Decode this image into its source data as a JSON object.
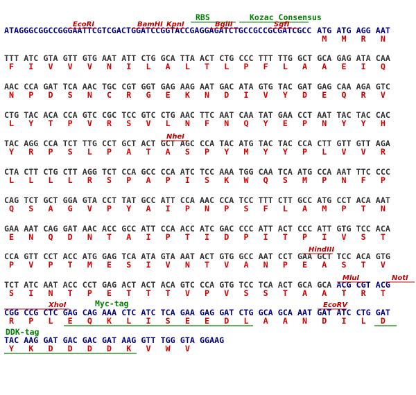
{
  "rows": [
    {
      "annotations": [
        "RBS",
        "Kozac Consensus",
        "EcoRI",
        "BamHI",
        "KpnI",
        "BglII",
        "SgfI"
      ],
      "sequence": [
        "ATAGGGCGGCCGGGAATTCGTCGACTGGATCCGGTACCGAGGAGATCTGCCGCCGCGATCGCC",
        "ATG",
        "ATG",
        "AGG",
        "AAT"
      ],
      "amino_acids": [
        "M",
        "M",
        "R",
        "N"
      ]
    },
    {
      "annotations": [],
      "sequence": [
        "TTT",
        "ATC",
        "GTA",
        "GTT",
        "GTG",
        "AAT",
        "ATT",
        "CTG",
        "GCA",
        "TTA",
        "ACT",
        "CTG",
        "CCC",
        "TTT",
        "TTG",
        "GCT",
        "GCA",
        "GAG",
        "ATA",
        "CAA"
      ],
      "amino_acids": [
        "F",
        "I",
        "V",
        "V",
        "V",
        "N",
        "I",
        "L",
        "A",
        "L",
        "T",
        "L",
        "P",
        "F",
        "L",
        "A",
        "A",
        "E",
        "I",
        "Q"
      ]
    },
    {
      "annotations": [],
      "sequence": [
        "AAC",
        "CCA",
        "GAT",
        "TCA",
        "AAC",
        "TGC",
        "CGT",
        "GGT",
        "GAG",
        "AAG",
        "AAT",
        "GAC",
        "ATA",
        "GTG",
        "TAC",
        "GAT",
        "GAG",
        "CAA",
        "AGA",
        "GTC"
      ],
      "amino_acids": [
        "N",
        "P",
        "D",
        "S",
        "N",
        "C",
        "R",
        "G",
        "E",
        "K",
        "N",
        "D",
        "I",
        "V",
        "Y",
        "D",
        "E",
        "Q",
        "R",
        "V"
      ]
    },
    {
      "annotations": [],
      "sequence": [
        "CTG",
        "TAC",
        "ACA",
        "CCA",
        "GTC",
        "CGC",
        "TCC",
        "GTC",
        "CTG",
        "AAC",
        "TTC",
        "AAT",
        "CAA",
        "TAT",
        "GAA",
        "CCT",
        "AAT",
        "TAC",
        "TAC",
        "CAC"
      ],
      "amino_acids": [
        "L",
        "Y",
        "T",
        "P",
        "V",
        "R",
        "S",
        "V",
        "L",
        "N",
        "F",
        "N",
        "Q",
        "Y",
        "E",
        "P",
        "N",
        "Y",
        "Y",
        "H"
      ]
    },
    {
      "annotations": [
        "NheI"
      ],
      "sequence": [
        "TAC",
        "AGG",
        "CCA",
        "TCT",
        "TTG",
        "CCT",
        "GCT",
        "ACT",
        "GCT",
        "AGC",
        "CCA",
        "TAC",
        "ATG",
        "TAC",
        "TAC",
        "CCA",
        "CTT",
        "GTT",
        "GTT",
        "AGA"
      ],
      "amino_acids": [
        "Y",
        "R",
        "P",
        "S",
        "L",
        "P",
        "A",
        "T",
        "A",
        "S",
        "P",
        "Y",
        "M",
        "Y",
        "Y",
        "P",
        "L",
        "V",
        "V",
        "R"
      ]
    },
    {
      "annotations": [],
      "sequence": [
        "CTA",
        "CTT",
        "CTG",
        "CTT",
        "AGG",
        "TCT",
        "CCA",
        "GCC",
        "CCA",
        "ATC",
        "TCC",
        "AAA",
        "TGG",
        "CAA",
        "TCA",
        "ATG",
        "CCA",
        "AAT",
        "TTC",
        "CCC"
      ],
      "amino_acids": [
        "L",
        "L",
        "L",
        "L",
        "R",
        "S",
        "P",
        "A",
        "P",
        "I",
        "S",
        "K",
        "W",
        "Q",
        "S",
        "M",
        "P",
        "N",
        "F",
        "P"
      ]
    },
    {
      "annotations": [],
      "sequence": [
        "CAG",
        "TCT",
        "GCT",
        "GGA",
        "GTA",
        "CCT",
        "TAT",
        "GCC",
        "ATT",
        "CCA",
        "AAC",
        "CCA",
        "TCC",
        "TTT",
        "CTT",
        "GCC",
        "ATG",
        "CCT",
        "ACA",
        "AAT"
      ],
      "amino_acids": [
        "Q",
        "S",
        "A",
        "G",
        "V",
        "P",
        "Y",
        "A",
        "I",
        "P",
        "N",
        "P",
        "S",
        "F",
        "L",
        "A",
        "M",
        "P",
        "T",
        "N"
      ]
    },
    {
      "annotations": [],
      "sequence": [
        "GAA",
        "AAT",
        "CAG",
        "GAT",
        "AAC",
        "ACC",
        "GCC",
        "ATT",
        "CCA",
        "ACC",
        "ATC",
        "GAC",
        "CCC",
        "ATT",
        "ACT",
        "CCC",
        "ATT",
        "GTG",
        "TCC",
        "ACA"
      ],
      "amino_acids": [
        "E",
        "N",
        "Q",
        "D",
        "N",
        "T",
        "A",
        "I",
        "P",
        "T",
        "I",
        "D",
        "P",
        "I",
        "T",
        "P",
        "I",
        "V",
        "S",
        "T"
      ]
    },
    {
      "annotations": [
        "HindIII"
      ],
      "sequence": [
        "CCA",
        "GTT",
        "CCT",
        "ACC",
        "ATG",
        "GAG",
        "TCA",
        "ATA",
        "GTA",
        "AAT",
        "ACT",
        "GTG",
        "GCC",
        "AAT",
        "CCT",
        "GAA",
        "GCT",
        "TCC",
        "ACA",
        "GTG"
      ],
      "amino_acids": [
        "P",
        "V",
        "P",
        "T",
        "M",
        "E",
        "S",
        "I",
        "V",
        "N",
        "T",
        "V",
        "A",
        "N",
        "P",
        "E",
        "A",
        "S",
        "T",
        "V"
      ]
    },
    {
      "annotations": [
        "MluI",
        "NotI"
      ],
      "sequence": [
        "TCT",
        "ATC",
        "AAT",
        "ACC",
        "CCT",
        "GAG",
        "ACT",
        "ACT",
        "ACA",
        "GTC",
        "CCA",
        "GTG",
        "TCC",
        "TCA",
        "ACT",
        "GCA",
        "GCA",
        "ACG",
        "CGT",
        "ACG"
      ],
      "amino_acids": [
        "S",
        "I",
        "N",
        "T",
        "P",
        "E",
        "T",
        "T",
        "T",
        "V",
        "P",
        "V",
        "S",
        "S",
        "T",
        "A",
        "A",
        "T",
        "R",
        "T"
      ]
    },
    {
      "annotations": [
        "XhoI",
        "Myc-tag",
        "EcoRV"
      ],
      "sequence": [
        "CGG",
        "CCG",
        "CTC",
        "GAG",
        "CAG",
        "AAA",
        "CTC",
        "ATC",
        "TCA",
        "GAA",
        "GAG",
        "GAT",
        "CTG",
        "GCA",
        "GCA",
        "AAT",
        "GAT",
        "ATC",
        "CTG",
        "GAT"
      ],
      "amino_acids": [
        "R",
        "P",
        "L",
        "E",
        "Q",
        "K",
        "L",
        "I",
        "S",
        "E",
        "E",
        "D",
        "L",
        "A",
        "A",
        "N",
        "D",
        "I",
        "L",
        "D"
      ]
    },
    {
      "annotations": [
        "DDK-tag"
      ],
      "sequence": [
        "TAC",
        "AAG",
        "GAT",
        "GAC",
        "GAC",
        "GAT",
        "AAG",
        "GTT",
        "TGG",
        "GTA",
        "GGAAG"
      ],
      "amino_acids": [
        "Y",
        "K",
        "D",
        "D",
        "D",
        "D",
        "K",
        "V",
        "W",
        "V"
      ]
    }
  ]
}
